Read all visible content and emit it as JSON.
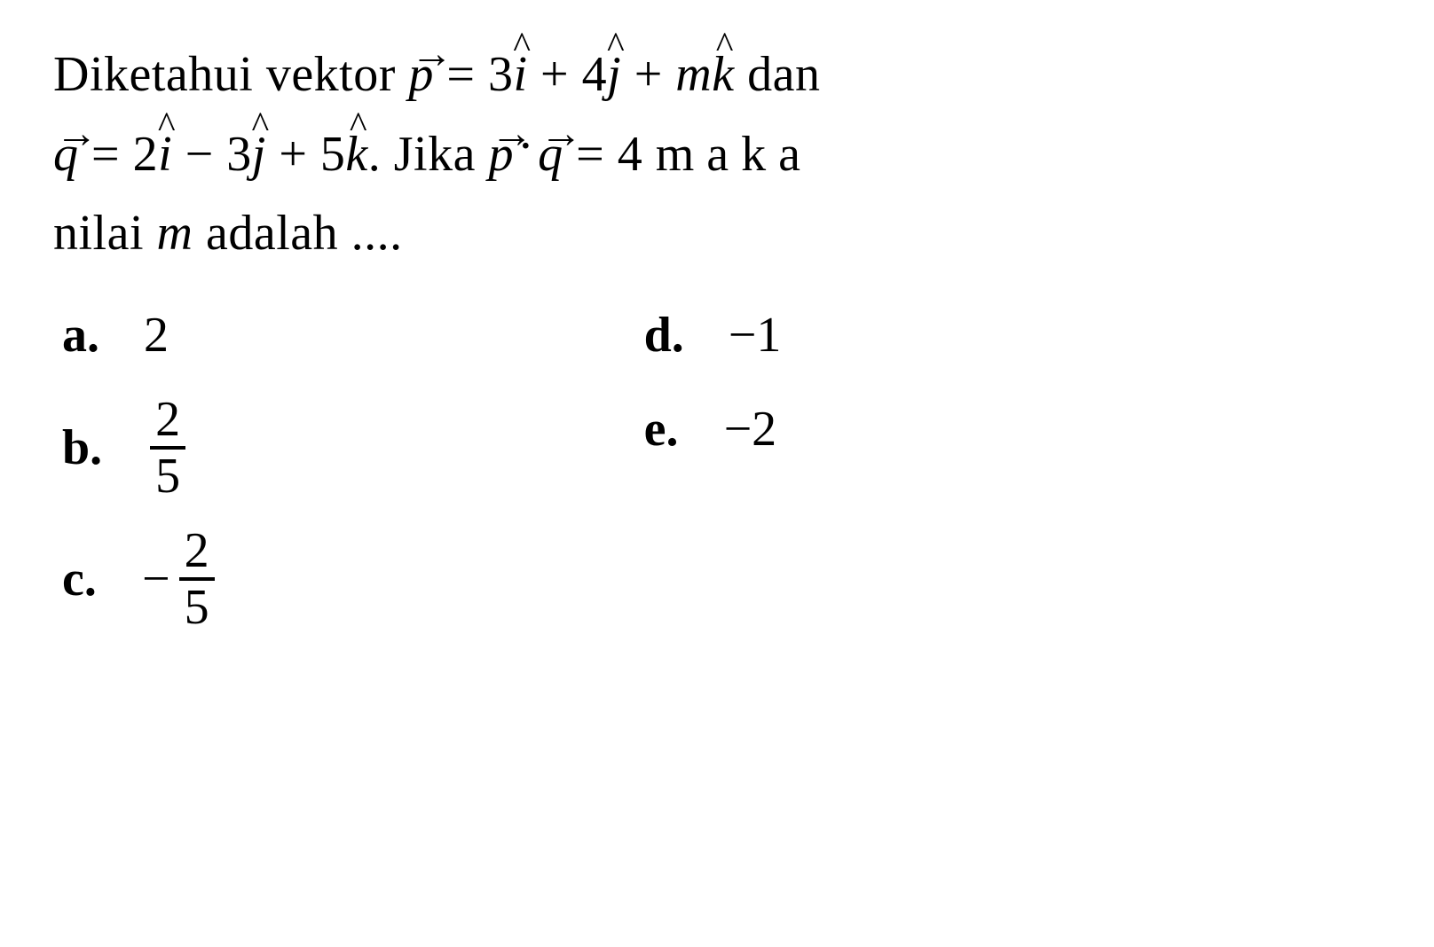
{
  "question": {
    "line1_pre": "Diketahui vektor ",
    "line1_vec_p": "p",
    "line1_eq1": " = 3",
    "line1_ihat": "i",
    "line1_plus1": " + 4",
    "line1_jhat": "j",
    "line1_plus2": " + ",
    "line1_m": "m",
    "line1_khat": "k",
    "line1_post": " dan",
    "line2_vec_q": "q",
    "line2_eq": " = 2",
    "line2_ihat": "i",
    "line2_minus": " − 3",
    "line2_jhat": "j",
    "line2_plus": " + 5",
    "line2_khat": "k",
    "line2_jika": ". Jika ",
    "line2_vec_p2": "p",
    "line2_dot": "·",
    "line2_vec_q2": "q",
    "line2_eq_4": " = 4 ",
    "line2_maka": "maka",
    "line3_pre": "nilai ",
    "line3_m": "m",
    "line3_post": " adalah ....",
    "arrow_sym": "→",
    "hat_sym": "^"
  },
  "options": {
    "a": {
      "letter": "a.",
      "value": "2"
    },
    "b": {
      "letter": "b.",
      "num": "2",
      "den": "5"
    },
    "c": {
      "letter": "c.",
      "neg": "−",
      "num": "2",
      "den": "5"
    },
    "d": {
      "letter": "d.",
      "value": "−1"
    },
    "e": {
      "letter": "e.",
      "value": "−2"
    }
  },
  "style": {
    "font_size_main": 56,
    "background": "#ffffff",
    "text_color": "#000000",
    "frac_border_width": 4
  }
}
